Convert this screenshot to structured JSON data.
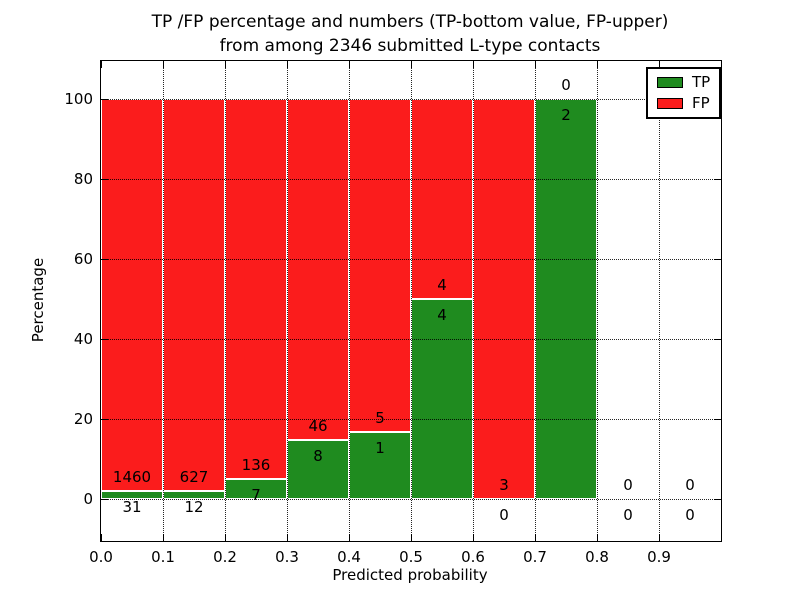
{
  "figure": {
    "title_line1": "TP /FP percentage and numbers (TP-bottom value, FP-upper)",
    "title_line2": "from among 2346 submitted L-type contacts"
  },
  "chart_data": {
    "type": "bar",
    "stacked": true,
    "title": "TP /FP percentage and numbers (TP-bottom value, FP-upper) from among 2346 submitted L-type contacts",
    "xlabel": "Predicted probability",
    "ylabel": "Percentage",
    "xlim": [
      0.0,
      1.0
    ],
    "ylim": [
      -10.5,
      109.5
    ],
    "x_tick_values": [
      0.0,
      0.1,
      0.2,
      0.3,
      0.4,
      0.5,
      0.6,
      0.7,
      0.8,
      0.9
    ],
    "x_tick_labels": [
      "0.0",
      "0.1",
      "0.2",
      "0.3",
      "0.4",
      "0.5",
      "0.6",
      "0.7",
      "0.8",
      "0.9"
    ],
    "y_tick_values": [
      0,
      20,
      40,
      60,
      80,
      100
    ],
    "y_tick_labels": [
      "0",
      "20",
      "40",
      "60",
      "80",
      "100"
    ],
    "grid": "dotted both axes",
    "legend": {
      "position": "upper right",
      "entries": [
        {
          "label": "TP",
          "color": "#1f8b1f"
        },
        {
          "label": "FP",
          "color": "#fb1c1c"
        }
      ]
    },
    "colors": {
      "tp": "#1f8b1f",
      "fp": "#fb1c1c",
      "bar_edge": "#ffffff",
      "grid": "#000000",
      "text": "#000000"
    },
    "bin_width": 0.1,
    "bins": [
      {
        "range": [
          0.0,
          0.1
        ],
        "tp_count": 31,
        "fp_count": 1460,
        "tp_pct": 2.08,
        "fp_pct": 97.92
      },
      {
        "range": [
          0.1,
          0.2
        ],
        "tp_count": 12,
        "fp_count": 627,
        "tp_pct": 1.88,
        "fp_pct": 98.12
      },
      {
        "range": [
          0.2,
          0.3
        ],
        "tp_count": 7,
        "fp_count": 136,
        "tp_pct": 4.9,
        "fp_pct": 95.1
      },
      {
        "range": [
          0.3,
          0.4
        ],
        "tp_count": 8,
        "fp_count": 46,
        "tp_pct": 14.81,
        "fp_pct": 85.19
      },
      {
        "range": [
          0.4,
          0.5
        ],
        "tp_count": 1,
        "fp_count": 5,
        "tp_pct": 16.67,
        "fp_pct": 83.33
      },
      {
        "range": [
          0.5,
          0.6
        ],
        "tp_count": 4,
        "fp_count": 4,
        "tp_pct": 50.0,
        "fp_pct": 50.0
      },
      {
        "range": [
          0.6,
          0.7
        ],
        "tp_count": 0,
        "fp_count": 3,
        "tp_pct": 0.0,
        "fp_pct": 100.0
      },
      {
        "range": [
          0.7,
          0.8
        ],
        "tp_count": 2,
        "fp_count": 0,
        "tp_pct": 100.0,
        "fp_pct": 0.0
      },
      {
        "range": [
          0.8,
          0.9
        ],
        "tp_count": 0,
        "fp_count": 0,
        "tp_pct": 0.0,
        "fp_pct": 0.0
      },
      {
        "range": [
          0.9,
          1.0
        ],
        "tp_count": 0,
        "fp_count": 0,
        "tp_pct": 0.0,
        "fp_pct": 0.0
      }
    ]
  }
}
